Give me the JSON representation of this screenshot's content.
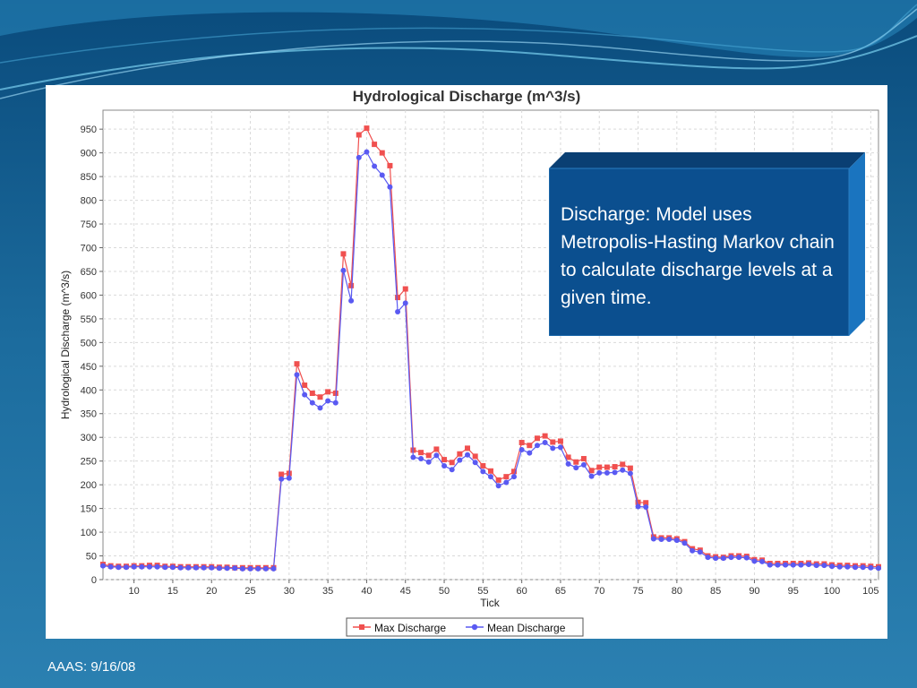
{
  "slide": {
    "callout_text": "Discharge:  Model uses Metropolis-Hasting Markov chain to calculate discharge levels at a given time.",
    "footer": "AAAS: 9/16/08",
    "colors": {
      "background": "#1a6a9c",
      "callout": "#0b4f8f"
    }
  },
  "chart_data": {
    "type": "line",
    "title": "Hydrological Discharge (m^3/s)",
    "xlabel": "Tick",
    "ylabel": "Hydrological Discharge (m^3/s)",
    "xlim": [
      6,
      106
    ],
    "ylim": [
      0,
      990
    ],
    "x_ticks": [
      10,
      15,
      20,
      25,
      30,
      35,
      40,
      45,
      50,
      55,
      60,
      65,
      70,
      75,
      80,
      85,
      90,
      95,
      100,
      105
    ],
    "y_ticks": [
      0,
      50,
      100,
      150,
      200,
      250,
      300,
      350,
      400,
      450,
      500,
      550,
      600,
      650,
      700,
      750,
      800,
      850,
      900,
      950
    ],
    "grid": true,
    "legend_position": "bottom",
    "x": [
      6,
      7,
      8,
      9,
      10,
      11,
      12,
      13,
      14,
      15,
      16,
      17,
      18,
      19,
      20,
      21,
      22,
      23,
      24,
      25,
      26,
      27,
      28,
      29,
      30,
      31,
      32,
      33,
      34,
      35,
      36,
      37,
      38,
      39,
      40,
      41,
      42,
      43,
      44,
      45,
      46,
      47,
      48,
      49,
      50,
      51,
      52,
      53,
      54,
      55,
      56,
      57,
      58,
      59,
      60,
      61,
      62,
      63,
      64,
      65,
      66,
      67,
      68,
      69,
      70,
      71,
      72,
      73,
      74,
      75,
      76,
      77,
      78,
      79,
      80,
      81,
      82,
      83,
      84,
      85,
      86,
      87,
      88,
      89,
      90,
      91,
      92,
      93,
      94,
      95,
      96,
      97,
      98,
      99,
      100,
      101,
      102,
      103,
      104,
      105,
      106
    ],
    "series": [
      {
        "name": "Max Discharge",
        "color": "#f0504f",
        "marker": "square",
        "values": [
          32,
          29,
          28,
          28,
          29,
          29,
          30,
          30,
          28,
          28,
          27,
          27,
          27,
          27,
          27,
          26,
          26,
          25,
          25,
          25,
          25,
          25,
          25,
          222,
          224,
          455,
          410,
          393,
          385,
          396,
          393,
          687,
          620,
          938,
          952,
          918,
          900,
          873,
          595,
          613,
          273,
          268,
          262,
          275,
          253,
          247,
          265,
          277,
          260,
          240,
          229,
          210,
          217,
          228,
          289,
          283,
          298,
          303,
          290,
          292,
          258,
          248,
          255,
          230,
          237,
          237,
          238,
          243,
          235,
          163,
          162,
          90,
          88,
          88,
          86,
          80,
          65,
          62,
          50,
          48,
          47,
          50,
          50,
          49,
          42,
          41,
          34,
          34,
          34,
          34,
          34,
          35,
          33,
          33,
          31,
          30,
          30,
          29,
          29,
          28,
          27
        ]
      },
      {
        "name": "Mean Discharge",
        "color": "#5a5af2",
        "marker": "circle",
        "values": [
          29,
          27,
          26,
          26,
          27,
          27,
          27,
          27,
          26,
          26,
          25,
          25,
          25,
          25,
          25,
          24,
          24,
          24,
          23,
          23,
          23,
          23,
          23,
          212,
          214,
          432,
          390,
          373,
          362,
          377,
          373,
          652,
          588,
          890,
          902,
          872,
          853,
          828,
          565,
          583,
          258,
          255,
          248,
          262,
          240,
          232,
          252,
          263,
          247,
          228,
          217,
          198,
          205,
          217,
          274,
          267,
          283,
          289,
          277,
          279,
          244,
          236,
          242,
          218,
          225,
          225,
          226,
          231,
          224,
          154,
          153,
          86,
          85,
          85,
          83,
          77,
          61,
          58,
          47,
          45,
          45,
          47,
          47,
          46,
          39,
          38,
          31,
          31,
          31,
          31,
          31,
          32,
          30,
          30,
          28,
          27,
          27,
          26,
          26,
          25,
          24
        ]
      }
    ]
  }
}
